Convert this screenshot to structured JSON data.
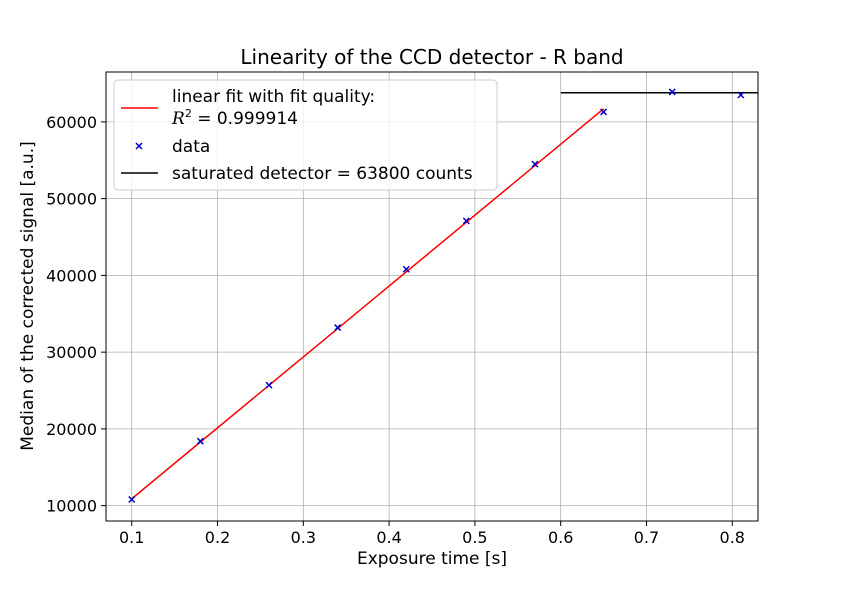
{
  "chart_data": {
    "type": "scatter",
    "title": "Linearity of the CCD detector - R band",
    "xlabel": "Exposure time [s]",
    "ylabel": "Median of the corrected signal [a.u.]",
    "xlim": [
      0.07,
      0.83
    ],
    "ylim": [
      8000,
      66500
    ],
    "xticks": [
      0.1,
      0.2,
      0.3,
      0.4,
      0.5,
      0.6,
      0.7,
      0.8
    ],
    "xtick_labels": [
      "0.1",
      "0.2",
      "0.3",
      "0.4",
      "0.5",
      "0.6",
      "0.7",
      "0.8"
    ],
    "yticks": [
      10000,
      20000,
      30000,
      40000,
      50000,
      60000
    ],
    "ytick_labels": [
      "10000",
      "20000",
      "30000",
      "40000",
      "50000",
      "60000"
    ],
    "grid": true,
    "legend_position": "top-left",
    "series": [
      {
        "name": "data",
        "kind": "scatter",
        "marker": "x",
        "color": "#0000cc",
        "x": [
          0.1,
          0.18,
          0.26,
          0.34,
          0.42,
          0.49,
          0.57,
          0.65,
          0.73,
          0.81
        ],
        "y": [
          10800,
          18400,
          25700,
          33200,
          40800,
          47100,
          54500,
          61300,
          63900,
          63500
        ]
      },
      {
        "name": "linear fit with fit quality:",
        "label_line2_prefix": "R",
        "label_line2_sup": "2",
        "label_line2_rest": " = 0.999914",
        "kind": "line",
        "color": "#ff0000",
        "x": [
          0.1,
          0.65
        ],
        "y": [
          10900,
          61700
        ]
      },
      {
        "name": "saturated detector = 63800 counts",
        "kind": "hline",
        "color": "#000000",
        "x": [
          0.6,
          0.83
        ],
        "y": [
          63800,
          63800
        ]
      }
    ]
  }
}
